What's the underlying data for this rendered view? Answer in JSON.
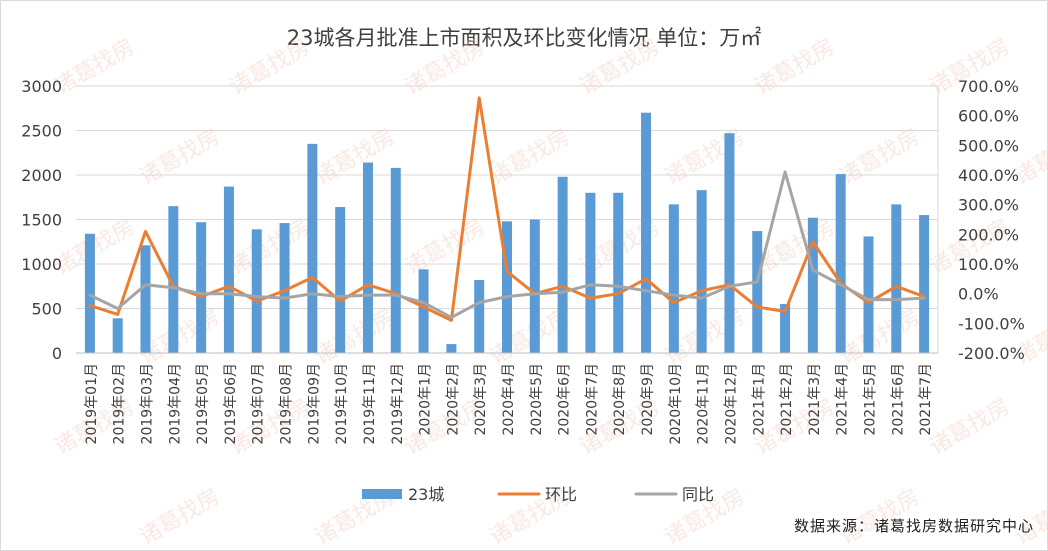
{
  "chart_data": {
    "type": "bar",
    "title": "23城各月批准上市面积及环比变化情况  单位：万㎡",
    "watermark": "诸葛找房",
    "source": "数据来源：诸葛找房数据研究中心",
    "categories": [
      "2019年01月",
      "2019年02月",
      "2019年03月",
      "2019年04月",
      "2019年05月",
      "2019年06月",
      "2019年07月",
      "2019年08月",
      "2019年09月",
      "2019年10月",
      "2019年11月",
      "2019年12月",
      "2020年1月",
      "2020年2月",
      "2020年3月",
      "2020年4月",
      "2020年5月",
      "2020年6月",
      "2020年7月",
      "2020年8月",
      "2020年9月",
      "2020年10月",
      "2020年11月",
      "2020年12月",
      "2021年1月",
      "2021年2月",
      "2021年3月",
      "2021年4月",
      "2021年5月",
      "2021年6月",
      "2021年7月"
    ],
    "y_left": {
      "ylim": [
        0,
        3000
      ],
      "ticks": [
        "0",
        "500",
        "1000",
        "1500",
        "2000",
        "2500",
        "3000"
      ]
    },
    "y_right": {
      "ylim": [
        -200,
        700
      ],
      "ticks": [
        "-200.0%",
        "-100.0%",
        "0.0%",
        "100.0%",
        "200.0%",
        "300.0%",
        "400.0%",
        "500.0%",
        "600.0%",
        "700.0%"
      ]
    },
    "series": [
      {
        "name": "23城",
        "type": "bar",
        "axis": "left",
        "color": "#5b9bd5",
        "values": [
          1340,
          390,
          1210,
          1650,
          1470,
          1870,
          1390,
          1460,
          2350,
          1640,
          2140,
          2080,
          940,
          100,
          820,
          1480,
          1500,
          1980,
          1800,
          1800,
          2700,
          1670,
          1830,
          2470,
          1370,
          550,
          1520,
          2010,
          1310,
          1670,
          1550
        ]
      },
      {
        "name": "环比",
        "type": "line",
        "axis": "right",
        "color": "#ed7d31",
        "values": [
          -40,
          -70,
          210,
          25,
          -10,
          25,
          -25,
          10,
          55,
          -25,
          30,
          0,
          -45,
          -90,
          660,
          75,
          0,
          25,
          -15,
          0,
          50,
          -30,
          10,
          30,
          -45,
          -60,
          175,
          35,
          -30,
          25,
          -10
        ]
      },
      {
        "name": "同比",
        "type": "line",
        "axis": "right",
        "color": "#a5a5a5",
        "values": [
          -5,
          -50,
          30,
          20,
          0,
          0,
          -10,
          -15,
          0,
          -10,
          -5,
          -5,
          -30,
          -80,
          -30,
          -10,
          0,
          5,
          30,
          25,
          10,
          -5,
          -15,
          25,
          40,
          410,
          80,
          30,
          -20,
          -20,
          -15
        ]
      }
    ]
  }
}
